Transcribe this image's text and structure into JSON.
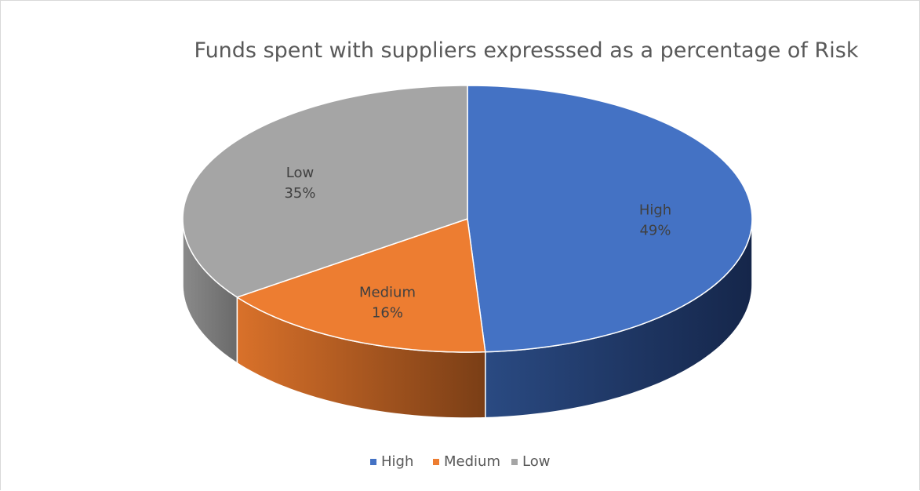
{
  "chart_data": {
    "type": "pie",
    "title": "Funds spent with suppliers expresssed as a percentage of Risk",
    "slices": [
      {
        "label": "High",
        "value": 49,
        "data_label": "49%",
        "color": "#4472C4",
        "side_color": "#1F3864"
      },
      {
        "label": "Medium",
        "value": 16,
        "data_label": "16%",
        "color": "#ED7D31",
        "side_color": "#A0521D"
      },
      {
        "label": "Low",
        "value": 35,
        "data_label": "35%",
        "color": "#A5A5A5",
        "side_color": "#6E6E6E"
      }
    ],
    "legend": {
      "position": "bottom",
      "entries": [
        "High",
        "Medium",
        "Low"
      ]
    },
    "style": "3d"
  }
}
